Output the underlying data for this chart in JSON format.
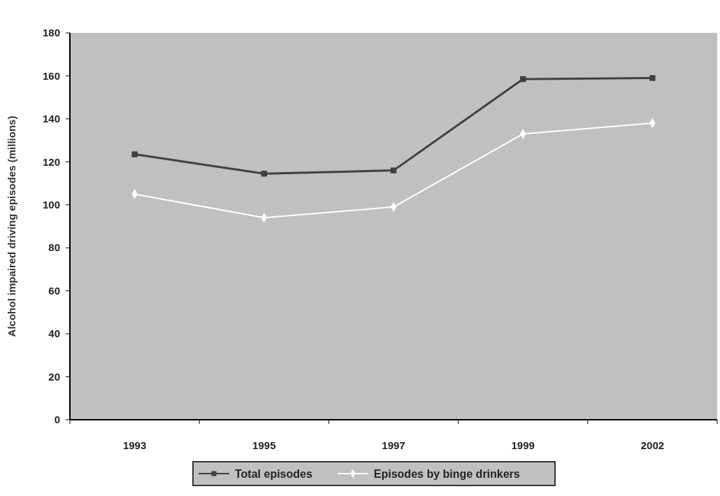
{
  "chart_data": {
    "type": "line",
    "ylabel": "Alcohol impaired driving episodes (millions)",
    "categories": [
      "1993",
      "1995",
      "1997",
      "1999",
      "2002"
    ],
    "series": [
      {
        "name": "Total episodes",
        "color": "#404040",
        "marker": "square",
        "values": [
          123.5,
          114.5,
          116,
          158.5,
          159
        ]
      },
      {
        "name": "Episodes by binge drinkers",
        "color": "#ffffff",
        "marker": "diamond",
        "values": [
          105,
          94,
          99,
          133,
          138
        ]
      }
    ],
    "ylim": [
      0,
      180
    ],
    "yticks": [
      0,
      20,
      40,
      60,
      80,
      100,
      120,
      140,
      160,
      180
    ],
    "grid": false,
    "legend": "bottom"
  }
}
